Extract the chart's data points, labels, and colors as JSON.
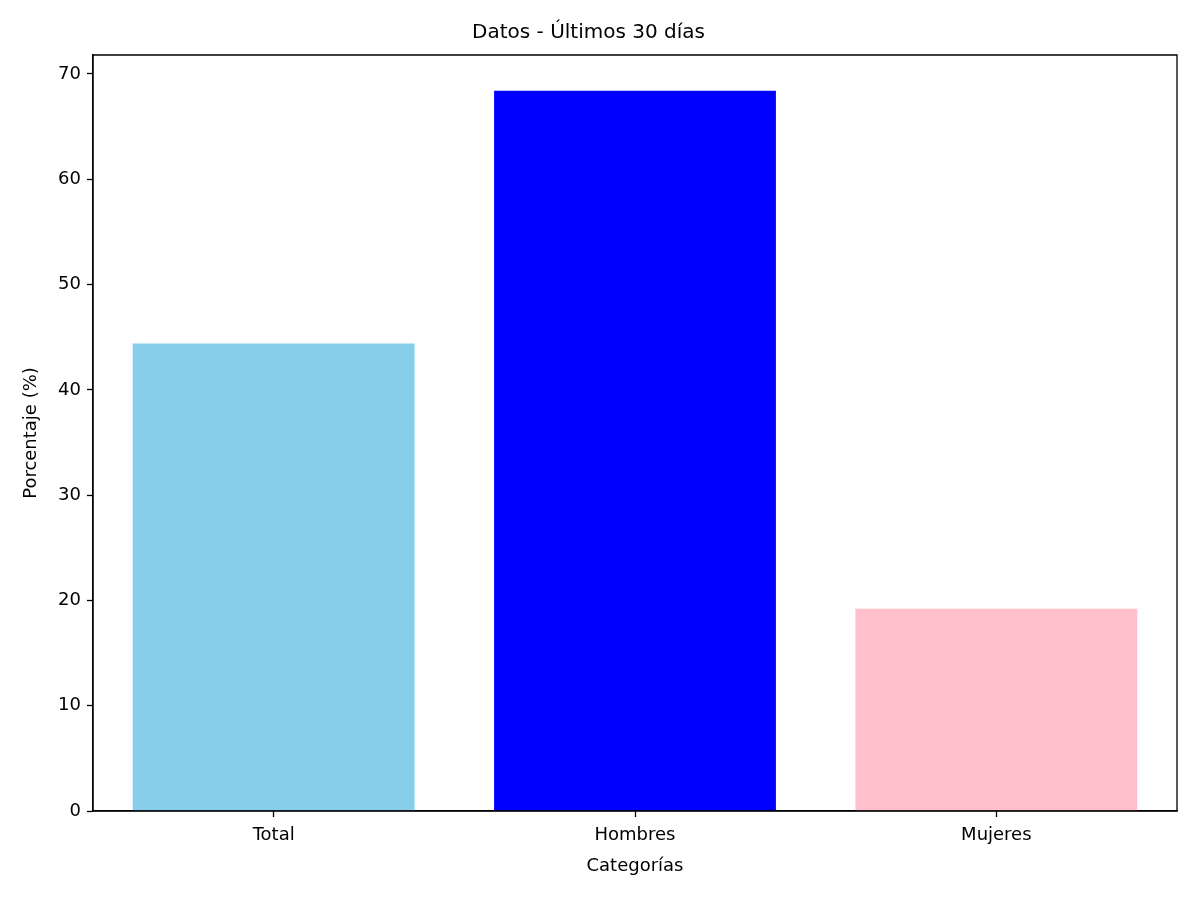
{
  "chart_data": {
    "type": "bar",
    "title": "Datos - Últimos 30 días",
    "xlabel": "Categorías",
    "ylabel": "Porcentaje (%)",
    "categories": [
      "Total",
      "Hombres",
      "Mujeres"
    ],
    "values": [
      44.4,
      68.4,
      19.2
    ],
    "colors": [
      "#87ceeb",
      "#0000ff",
      "#ffc0cb"
    ],
    "ylim": [
      0,
      71.8
    ],
    "yticks": [
      0,
      10,
      20,
      30,
      40,
      50,
      60,
      70
    ]
  }
}
